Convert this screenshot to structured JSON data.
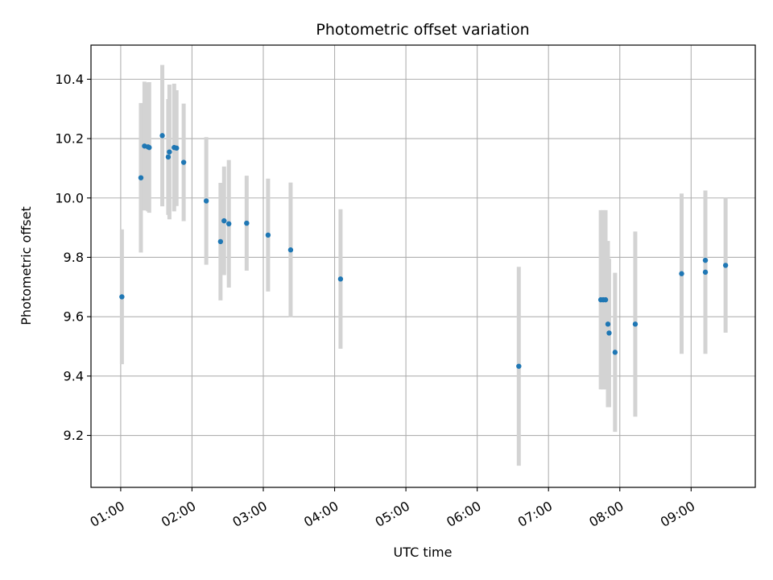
{
  "chart_data": {
    "type": "scatter",
    "title": "Photometric offset variation",
    "xlabel": "UTC time",
    "ylabel": "Photometric offset",
    "x_ticks": [
      "01:00",
      "02:00",
      "03:00",
      "04:00",
      "05:00",
      "06:00",
      "07:00",
      "08:00",
      "09:00"
    ],
    "y_ticks": [
      "9.2",
      "9.4",
      "9.6",
      "9.8",
      "10.0",
      "10.2",
      "10.4"
    ],
    "xlim": [
      "00:35",
      "09:54"
    ],
    "ylim": [
      9.025,
      10.515
    ],
    "grid": true,
    "colors": {
      "point": "#1f77b4",
      "errorbar": "#d3d3d3",
      "grid": "#b0b0b0"
    },
    "points": [
      {
        "x": "01:01",
        "y": 9.667,
        "err": 0.227
      },
      {
        "x": "01:17",
        "y": 10.068,
        "err": 0.252
      },
      {
        "x": "01:20",
        "y": 10.175,
        "err": 0.217
      },
      {
        "x": "01:23",
        "y": 10.172,
        "err": 0.217
      },
      {
        "x": "01:24",
        "y": 10.17,
        "err": 0.22
      },
      {
        "x": "01:35",
        "y": 10.21,
        "err": 0.238
      },
      {
        "x": "01:40",
        "y": 10.138,
        "err": 0.195
      },
      {
        "x": "01:41",
        "y": 10.155,
        "err": 0.227
      },
      {
        "x": "01:45",
        "y": 10.17,
        "err": 0.215
      },
      {
        "x": "01:47",
        "y": 10.168,
        "err": 0.195
      },
      {
        "x": "01:53",
        "y": 10.12,
        "err": 0.198
      },
      {
        "x": "02:12",
        "y": 9.99,
        "err": 0.215
      },
      {
        "x": "02:24",
        "y": 9.853,
        "err": 0.198
      },
      {
        "x": "02:27",
        "y": 9.923,
        "err": 0.183
      },
      {
        "x": "02:31",
        "y": 9.913,
        "err": 0.215
      },
      {
        "x": "02:46",
        "y": 9.915,
        "err": 0.16
      },
      {
        "x": "03:04",
        "y": 9.875,
        "err": 0.19
      },
      {
        "x": "03:23",
        "y": 9.825,
        "err": 0.227
      },
      {
        "x": "04:05",
        "y": 9.727,
        "err": 0.235
      },
      {
        "x": "06:35",
        "y": 9.433,
        "err": 0.335
      },
      {
        "x": "07:44",
        "y": 9.657,
        "err": 0.302
      },
      {
        "x": "07:46",
        "y": 9.657,
        "err": 0.302
      },
      {
        "x": "07:48",
        "y": 9.657,
        "err": 0.302
      },
      {
        "x": "07:50",
        "y": 9.575,
        "err": 0.28
      },
      {
        "x": "07:51",
        "y": 9.545,
        "err": 0.25
      },
      {
        "x": "07:56",
        "y": 9.48,
        "err": 0.268
      },
      {
        "x": "08:13",
        "y": 9.575,
        "err": 0.312
      },
      {
        "x": "08:52",
        "y": 9.745,
        "err": 0.27
      },
      {
        "x": "09:12",
        "y": 9.75,
        "err": 0.275
      },
      {
        "x": "09:12",
        "y": 9.79,
        "err": 0.235
      },
      {
        "x": "09:29",
        "y": 9.773,
        "err": 0.227
      }
    ]
  }
}
